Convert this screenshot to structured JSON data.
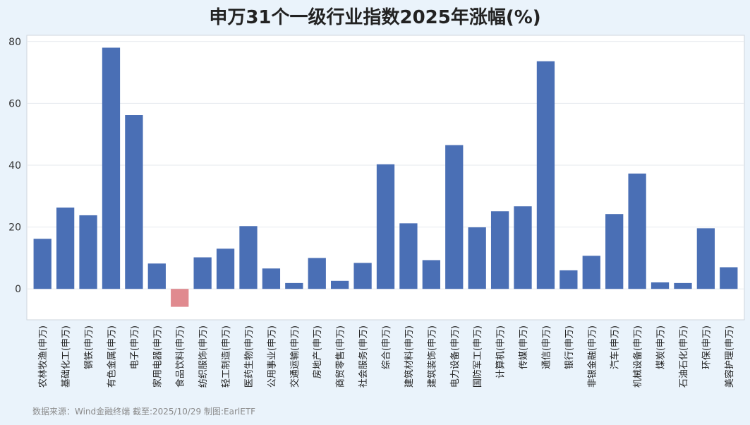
{
  "title": "申万31个一级行业指数2025年涨幅(%)",
  "source": "数据来源：Wind金融终端 截至:2025/10/29 制图:EarlETF",
  "colors": {
    "positive": "#4a6fb5",
    "negative": "#e08a8f",
    "plot_bg": "#ffffff",
    "page_bg": "#eaf3fb"
  },
  "chart_data": {
    "type": "bar",
    "categories": [
      "农林牧渔(申万)",
      "基础化工(申万)",
      "钢铁(申万)",
      "有色金属(申万)",
      "电子(申万)",
      "家用电器(申万)",
      "食品饮料(申万)",
      "纺织服饰(申万)",
      "轻工制造(申万)",
      "医药生物(申万)",
      "公用事业(申万)",
      "交通运输(申万)",
      "房地产(申万)",
      "商贸零售(申万)",
      "社会服务(申万)",
      "综合(申万)",
      "建筑材料(申万)",
      "建筑装饰(申万)",
      "电力设备(申万)",
      "国防军工(申万)",
      "计算机(申万)",
      "传媒(申万)",
      "通信(申万)",
      "银行(申万)",
      "非银金融(申万)",
      "汽车(申万)",
      "机械设备(申万)",
      "煤炭(申万)",
      "石油石化(申万)",
      "环保(申万)",
      "美容护理(申万)"
    ],
    "values": [
      16.2,
      26.3,
      23.8,
      78.0,
      56.2,
      8.2,
      -5.8,
      10.2,
      13.0,
      20.3,
      6.6,
      1.9,
      10.0,
      2.6,
      8.4,
      40.3,
      21.2,
      9.3,
      46.5,
      19.9,
      25.1,
      26.7,
      73.6,
      6.0,
      10.7,
      24.2,
      37.3,
      2.1,
      1.9,
      19.6,
      7.0
    ],
    "yticks": [
      0,
      20,
      40,
      60,
      80
    ],
    "ylim": [
      -10,
      82
    ],
    "grid": true,
    "legend": "none"
  }
}
